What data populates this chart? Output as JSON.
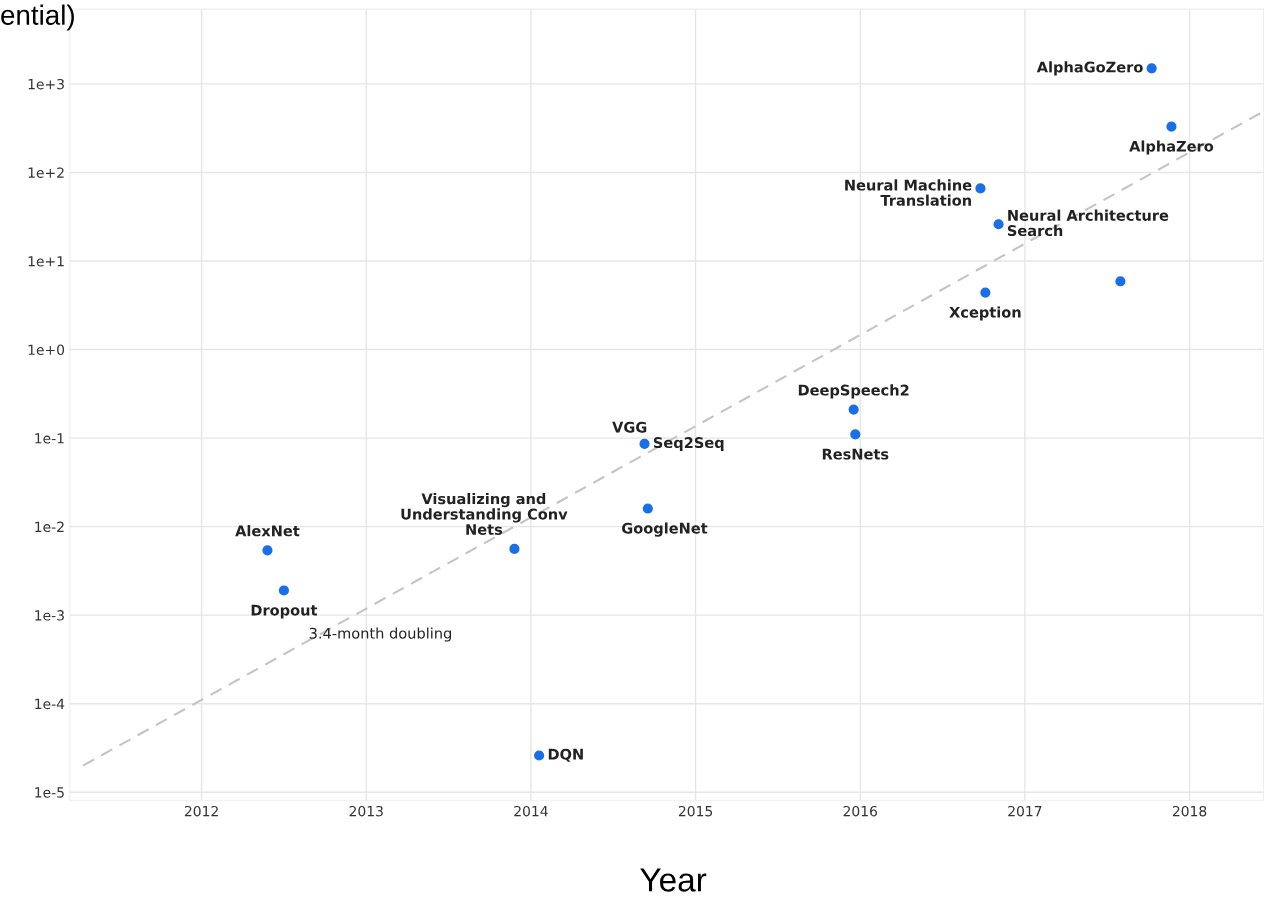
{
  "chart_data": {
    "type": "scatter",
    "title": "ential)",
    "xlabel": "Year",
    "log": "y",
    "grid": true,
    "marker": "circle",
    "xlim": [
      2011.2,
      2018.45
    ],
    "ylim": [
      8e-06,
      7000
    ],
    "xticks": [
      2012,
      2013,
      2014,
      2015,
      2016,
      2017,
      2018
    ],
    "yticks": [
      {
        "value": 1e-05,
        "label": "1e-5"
      },
      {
        "value": 0.0001,
        "label": "1e-4"
      },
      {
        "value": 0.001,
        "label": "1e-3"
      },
      {
        "value": 0.01,
        "label": "1e-2"
      },
      {
        "value": 0.1,
        "label": "1e-1"
      },
      {
        "value": 1,
        "label": "1e+0"
      },
      {
        "value": 10,
        "label": "1e+1"
      },
      {
        "value": 100,
        "label": "1e+2"
      },
      {
        "value": 1000,
        "label": "1e+3"
      }
    ],
    "series": [
      {
        "type": "line",
        "color": "#c4c4c4",
        "line_style": "dashed",
        "marker": "none",
        "x": [
          2011.28,
          2018.45
        ],
        "values": [
          2e-05,
          490
        ]
      },
      {
        "color": "#1a6fe8",
        "x": [
          2012.4,
          2012.5,
          2013.9,
          2014.05,
          2014.69,
          2014.71,
          2015.96,
          2015.97,
          2016.73,
          2016.84,
          2016.76,
          2017.58,
          2017.77,
          2017.89
        ],
        "values": [
          0.0054,
          0.0019,
          0.0056,
          2.6e-05,
          0.086,
          0.016,
          0.21,
          0.11,
          66,
          26,
          4.4,
          5.9,
          1500,
          330
        ]
      }
    ],
    "annotations": [
      {
        "text": "AlexNet",
        "x": 2012.4,
        "y": 0.0054
      },
      {
        "text": "Dropout",
        "x": 2012.5,
        "y": 0.0019
      },
      {
        "text": "Visualizing and\nUnderstanding Conv\nNets",
        "x": 2013.9,
        "y": 0.0056
      },
      {
        "text": "DQN",
        "x": 2014.05,
        "y": 2.6e-05
      },
      {
        "text": "VGG",
        "x": 2014.69,
        "y": 0.086
      },
      {
        "text": "Seq2Seq",
        "x": 2014.69,
        "y": 0.086
      },
      {
        "text": "GoogleNet",
        "x": 2014.71,
        "y": 0.016
      },
      {
        "text": "DeepSpeech2",
        "x": 2015.96,
        "y": 0.21
      },
      {
        "text": "ResNets",
        "x": 2015.97,
        "y": 0.11
      },
      {
        "text": "Neural Machine\nTranslation",
        "x": 2016.73,
        "y": 66
      },
      {
        "text": "Neural Architecture\nSearch",
        "x": 2016.84,
        "y": 26
      },
      {
        "text": "Xception",
        "x": 2016.76,
        "y": 4.4
      },
      {
        "text": "AlphaGoZero",
        "x": 2017.77,
        "y": 1500
      },
      {
        "text": "AlphaZero",
        "x": 2017.89,
        "y": 330
      },
      "3.4-month doubling"
    ]
  }
}
